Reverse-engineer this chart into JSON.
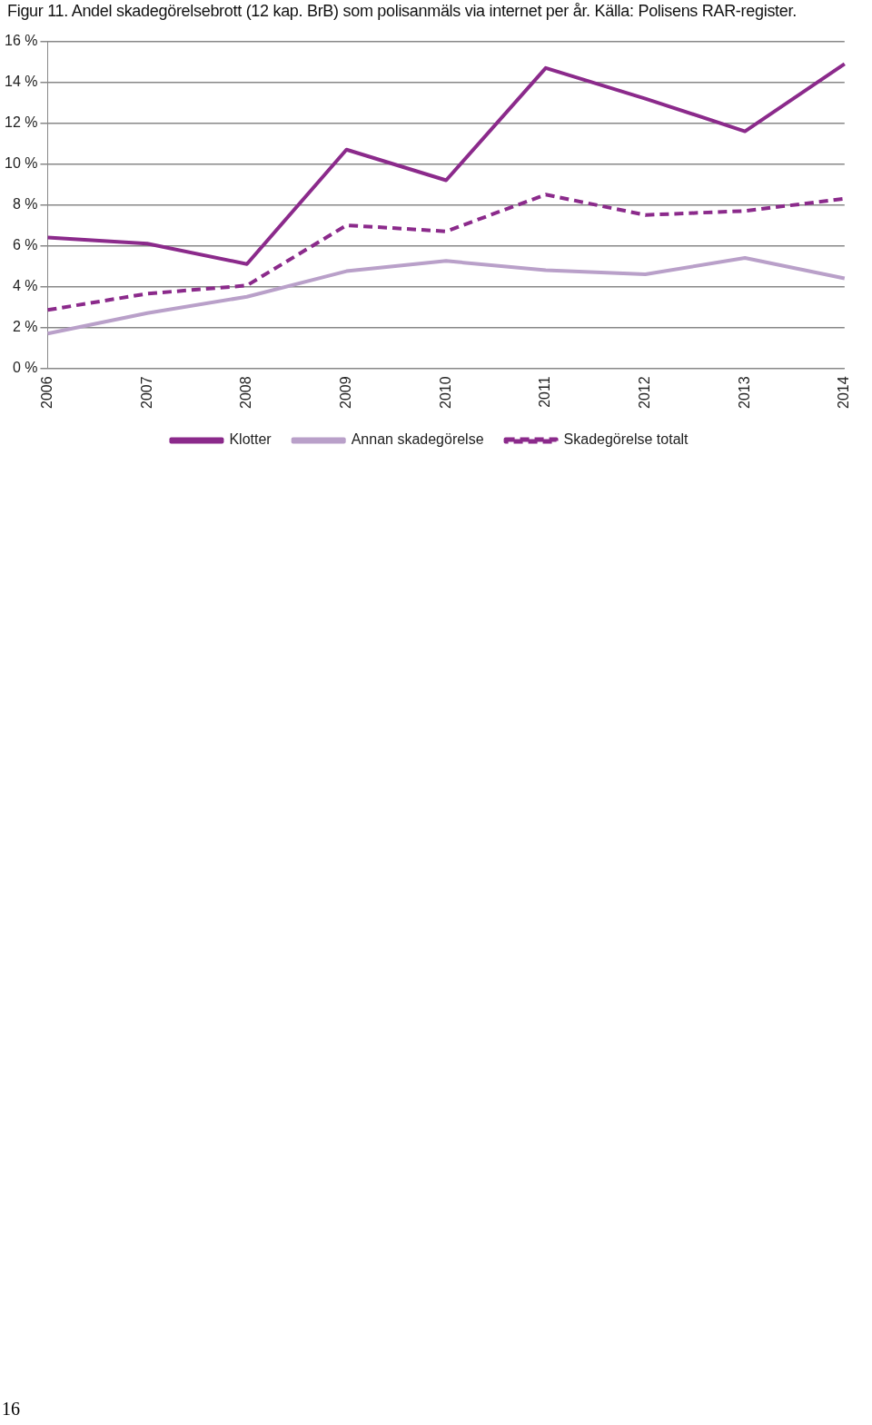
{
  "chart_data": {
    "type": "line",
    "title": "Figur 11. Andel skadegörelsebrott (12 kap. BrB) som polisanmäls via internet per år. Källa: Polisens RAR-register.",
    "categories": [
      "2006",
      "2007",
      "2008",
      "2009",
      "2010",
      "2011",
      "2012",
      "2013",
      "2014"
    ],
    "series": [
      {
        "name": "Klotter",
        "color": "#8b2a8b",
        "values": [
          6.4,
          6.1,
          5.1,
          10.7,
          9.2,
          14.7,
          13.2,
          11.6,
          14.9
        ]
      },
      {
        "name": "Annan skadegörelse",
        "color": "#b9a0c9",
        "values": [
          1.7,
          2.7,
          3.5,
          4.75,
          5.25,
          4.8,
          4.6,
          5.4,
          4.4
        ]
      },
      {
        "name": "Skadegörelse totalt",
        "color": "#8b2a8b",
        "values": [
          2.85,
          3.65,
          4.05,
          7.0,
          6.7,
          8.5,
          7.5,
          7.7,
          8.3
        ],
        "line_style": "dashed"
      }
    ],
    "ylim": [
      0,
      16
    ],
    "yticks": [
      {
        "value": 0,
        "label": "0 %"
      },
      {
        "value": 2,
        "label": "2 %"
      },
      {
        "value": 4,
        "label": "4 %"
      },
      {
        "value": 6,
        "label": "6 %"
      },
      {
        "value": 8,
        "label": "8 %"
      },
      {
        "value": 10,
        "label": "10 %"
      },
      {
        "value": 12,
        "label": "12 %"
      },
      {
        "value": 14,
        "label": "14 %"
      },
      {
        "value": 16,
        "label": "16 %"
      }
    ],
    "grid": "y",
    "legend": "bottom",
    "marker": "none",
    "line_style": "solid",
    "annotations": [
      "16"
    ]
  }
}
